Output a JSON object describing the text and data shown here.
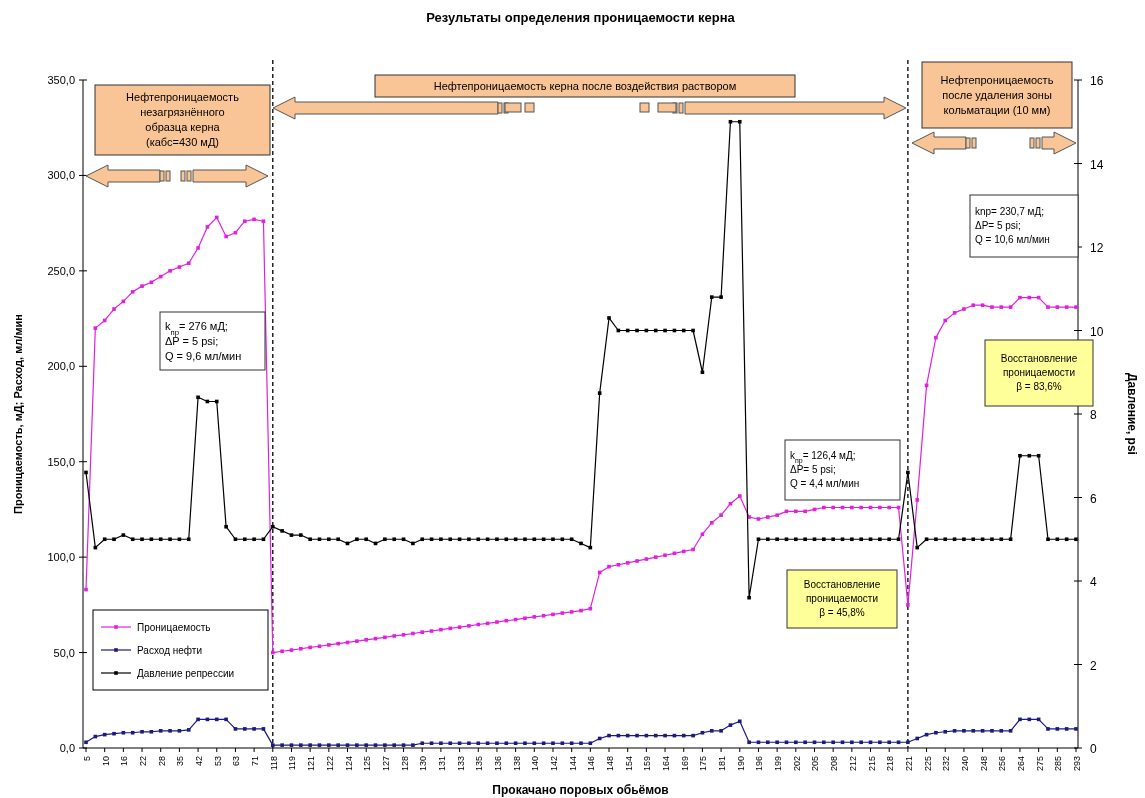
{
  "chart_data": {
    "type": "line",
    "title": "Результаты определения проницаемости керна",
    "xlabel": "Прокачано поровых обьёмов",
    "ylabel": "Проницаемость, мД; Расход, мл/мин",
    "y2label": "Давление, psi",
    "categories": [
      "5",
      null,
      "10",
      null,
      "16",
      null,
      "22",
      null,
      "28",
      null,
      "35",
      null,
      "42",
      null,
      "53",
      null,
      "63",
      null,
      "71",
      null,
      "118",
      null,
      "119",
      null,
      "121",
      null,
      "122",
      null,
      "124",
      null,
      "125",
      null,
      "127",
      null,
      "128",
      null,
      "130",
      null,
      "131",
      null,
      "133",
      null,
      "135",
      null,
      "136",
      null,
      "138",
      null,
      "140",
      null,
      "142",
      null,
      "144",
      null,
      "146",
      null,
      "148",
      null,
      "154",
      null,
      "159",
      null,
      "164",
      null,
      "169",
      null,
      "175",
      null,
      "181",
      null,
      "190",
      null,
      "196",
      null,
      "199",
      null,
      "202",
      null,
      "205",
      null,
      "208",
      null,
      "212",
      null,
      "215",
      null,
      "218",
      null,
      "221",
      null,
      "225",
      null,
      "232",
      null,
      "240",
      null,
      "248",
      null,
      "256",
      null,
      "264",
      null,
      "275",
      null,
      "285",
      null,
      "293"
    ],
    "ylim": [
      0,
      350
    ],
    "yticks": [
      {
        "value": 0,
        "label": "0,0"
      },
      {
        "value": 50,
        "label": "50,0"
      },
      {
        "value": 100,
        "label": "100,0"
      },
      {
        "value": 150,
        "label": "150,0"
      },
      {
        "value": 200,
        "label": "200,0"
      },
      {
        "value": 250,
        "label": "250,0"
      },
      {
        "value": 300,
        "label": "300,0"
      },
      {
        "value": 350,
        "label": "350,0"
      }
    ],
    "y2lim": [
      0,
      16
    ],
    "y2ticks": [
      0,
      2,
      4,
      6,
      8,
      10,
      12,
      14,
      16
    ],
    "grid": false,
    "legend": "bottom left",
    "marker": "square",
    "line_style": "solid",
    "series": [
      {
        "name": "Проницаемость",
        "type": "line",
        "axis": "y",
        "color": "#e020e0",
        "values": [
          83,
          220,
          224,
          230,
          234,
          239,
          242,
          244,
          247,
          250,
          252,
          254,
          262,
          273,
          278,
          268,
          270,
          276,
          277,
          276,
          50,
          50.7,
          51.3,
          52,
          52.7,
          53.3,
          54,
          54.7,
          55.3,
          56,
          56.7,
          57.3,
          58,
          58.7,
          59.3,
          60,
          60.7,
          61.3,
          62,
          62.7,
          63.3,
          64,
          64.7,
          65.3,
          66,
          66.7,
          67.3,
          68,
          68.7,
          69.3,
          70,
          70.7,
          71.3,
          72,
          73,
          92,
          95,
          96,
          97,
          98,
          99,
          100,
          101,
          102,
          103,
          104,
          112,
          118,
          122,
          128,
          132,
          121,
          120,
          121,
          122,
          124,
          124,
          124,
          125,
          126,
          126,
          126,
          126,
          126,
          126,
          126,
          126,
          126,
          75,
          130,
          190,
          215,
          224,
          228,
          230,
          232,
          232,
          231,
          231,
          231,
          236,
          236,
          236,
          231,
          231,
          231,
          231
        ]
      },
      {
        "name": "Расход нефти",
        "type": "line",
        "axis": "y",
        "color": "#1a1a80",
        "values": [
          3,
          6,
          7,
          7.5,
          8,
          8,
          8.5,
          8.5,
          9,
          9,
          9,
          9.5,
          15,
          15,
          15,
          15,
          10,
          10,
          10,
          10,
          1.5,
          1.5,
          1.5,
          1.5,
          1.5,
          1.5,
          1.5,
          1.5,
          1.5,
          1.5,
          1.5,
          1.5,
          1.5,
          1.5,
          1.5,
          1.5,
          2.5,
          2.5,
          2.5,
          2.5,
          2.5,
          2.5,
          2.5,
          2.5,
          2.5,
          2.5,
          2.5,
          2.5,
          2.5,
          2.5,
          2.5,
          2.5,
          2.5,
          2.5,
          2.5,
          5,
          6.5,
          6.5,
          6.5,
          6.5,
          6.5,
          6.5,
          6.5,
          6.5,
          6.5,
          6.5,
          8,
          9,
          9,
          12,
          14,
          3,
          3,
          3,
          3,
          3,
          3,
          3,
          3,
          3,
          3,
          3,
          3,
          3,
          3,
          3,
          3,
          3,
          3,
          5,
          7,
          8,
          8.5,
          9,
          9,
          9,
          9,
          9,
          9,
          9,
          15,
          15,
          15,
          10,
          10,
          10,
          10
        ]
      },
      {
        "name": "Давление репрессии",
        "type": "line",
        "axis": "y2",
        "color": "#000000",
        "values": [
          6.6,
          4.8,
          5,
          5,
          5.1,
          5,
          5,
          5,
          5,
          5,
          5,
          5,
          8.4,
          8.3,
          8.3,
          5.3,
          5,
          5,
          5,
          5,
          5.3,
          5.2,
          5.1,
          5.1,
          5,
          5,
          5,
          5,
          4.9,
          5,
          5,
          4.9,
          5,
          5,
          5,
          4.9,
          5,
          5,
          5,
          5,
          5,
          5,
          5,
          5,
          5,
          5,
          5,
          5,
          5,
          5,
          5,
          5,
          5,
          4.9,
          4.8,
          8.5,
          10.3,
          10,
          10,
          10,
          10,
          10,
          10,
          10,
          10,
          10,
          9,
          10.8,
          10.8,
          15,
          15,
          3.6,
          5,
          5,
          5,
          5,
          5,
          5,
          5,
          5,
          5,
          5,
          5,
          5,
          5,
          5,
          5,
          5,
          6.6,
          4.8,
          5,
          5,
          5,
          5,
          5,
          5,
          5,
          5,
          5,
          5,
          7,
          7,
          7,
          5,
          5,
          5,
          5
        ]
      }
    ],
    "ref_lines": [
      {
        "axis": "x",
        "value": "118",
        "line_style": "dashed",
        "color": "#000000"
      },
      {
        "axis": "x",
        "value": "221",
        "line_style": "dashed",
        "color": "#000000"
      }
    ],
    "annotations": [
      "Нефтепроницаемость\nнезагрязнённого\nобразца керна\n(кабс=430 мД)",
      "Нефтепроницаемость керна после воздействия раствором",
      "Нефтепроницаемость\nпосле удаления зоны\nкольматации (10 мм)",
      "k$_{пр}$= 276 мД;\nΔP = 5 psi;\nQ = 9,6 мл/мин",
      "k$_{пр}$= 126,4 мД;\nΔP= 5 psi;\nQ = 4,4 мл/мин",
      "knp= 230,7 мД;\nΔP= 5 psi;\nQ = 10,6 мл/мин",
      "Восстановление\nпроницаемости\nβ = 45,8%",
      "Восстановление\nпроницаемости\nβ = 83,6%"
    ]
  }
}
